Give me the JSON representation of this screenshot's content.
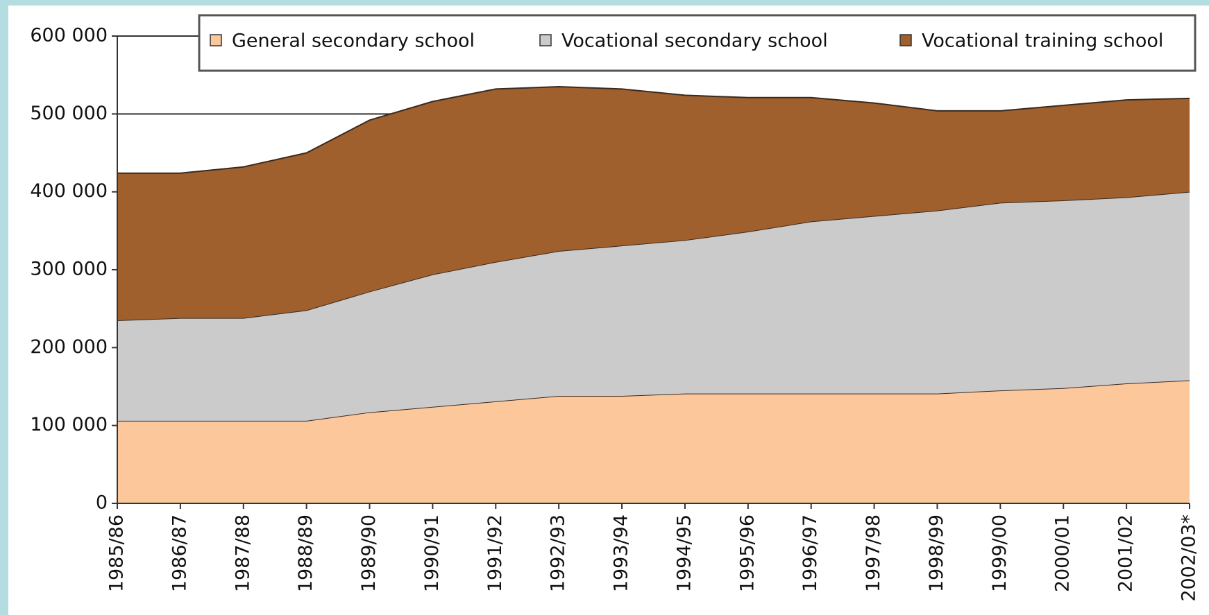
{
  "chart_data": {
    "type": "stacked-area",
    "categories": [
      "1985/86",
      "1986/87",
      "1987/88",
      "1988/89",
      "1989/90",
      "1990/91",
      "1991/92",
      "1992/93",
      "1993/94",
      "1994/95",
      "1995/96",
      "1996/97",
      "1997/98",
      "1998/99",
      "1999/00",
      "2000/01",
      "2001/02",
      "2002/03*"
    ],
    "series": [
      {
        "name": "General secondary school",
        "color": "#fdc79c",
        "values": [
          106000,
          106000,
          106000,
          106000,
          117000,
          124000,
          131000,
          138000,
          138000,
          141000,
          141000,
          141000,
          141000,
          141000,
          145000,
          148000,
          154000,
          158000
        ]
      },
      {
        "name": "Vocational secondary school",
        "color": "#cbcbcc",
        "values": [
          129000,
          132000,
          132000,
          142000,
          155000,
          170000,
          179000,
          186000,
          193000,
          197000,
          208000,
          221000,
          228000,
          235000,
          241000,
          241000,
          239000,
          242000
        ]
      },
      {
        "name": "Vocational training school",
        "color": "#a0602e",
        "values": [
          189000,
          186000,
          194000,
          202000,
          220000,
          222000,
          222000,
          211000,
          201000,
          186000,
          172000,
          159000,
          145000,
          128000,
          118000,
          122000,
          125000,
          120000
        ]
      }
    ],
    "ylim": [
      0,
      600000
    ],
    "yticks": [
      0,
      {
        "value": 100000,
        "label": "100 000"
      },
      {
        "value": 200000,
        "label": "200 000"
      },
      {
        "value": 300000,
        "label": "300 000"
      },
      {
        "value": 400000,
        "label": "400 000"
      },
      {
        "value": 500000,
        "label": "500 000"
      },
      {
        "value": 600000,
        "label": "600 000"
      }
    ],
    "grid": true,
    "legend": "top"
  }
}
